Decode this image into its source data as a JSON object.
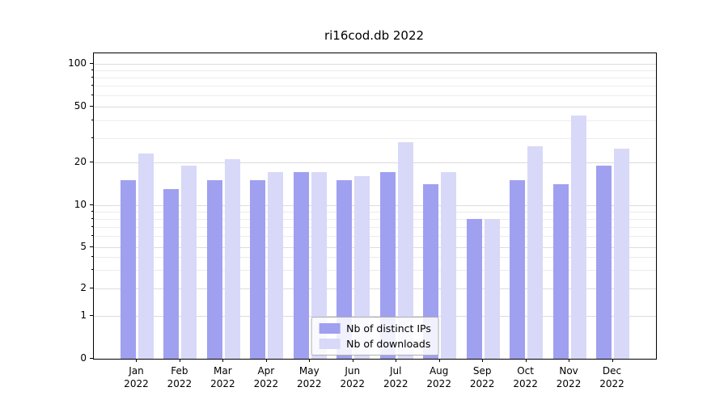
{
  "chart_data": {
    "type": "bar",
    "title": "ri16cod.db 2022",
    "categories": [
      "Jan",
      "Feb",
      "Mar",
      "Apr",
      "May",
      "Jun",
      "Jul",
      "Aug",
      "Sep",
      "Oct",
      "Nov",
      "Dec"
    ],
    "year_label": "2022",
    "series": [
      {
        "name": "Nb of distinct IPs",
        "color": "#a0a0f0",
        "values": [
          15,
          13,
          15,
          15,
          17,
          15,
          17,
          14,
          8,
          15,
          14,
          19
        ]
      },
      {
        "name": "Nb of downloads",
        "color": "#d8d8f8",
        "values": [
          23,
          19,
          21,
          17,
          17,
          16,
          28,
          17,
          8,
          26,
          43,
          25
        ]
      }
    ],
    "y_axis": {
      "scale": "symlog",
      "major_ticks": [
        0,
        1,
        2,
        5,
        10,
        20,
        50,
        100
      ],
      "minor_gridlines": [
        3,
        4,
        6,
        7,
        8,
        9,
        30,
        40,
        60,
        70,
        80,
        90
      ],
      "ylim": [
        0,
        115
      ]
    },
    "legend": {
      "position": "lower center"
    },
    "grid": true,
    "colors": {
      "axis": "#000000",
      "grid_major": "#dcdcdc",
      "grid_minor": "#ececec",
      "background": "#ffffff"
    }
  }
}
